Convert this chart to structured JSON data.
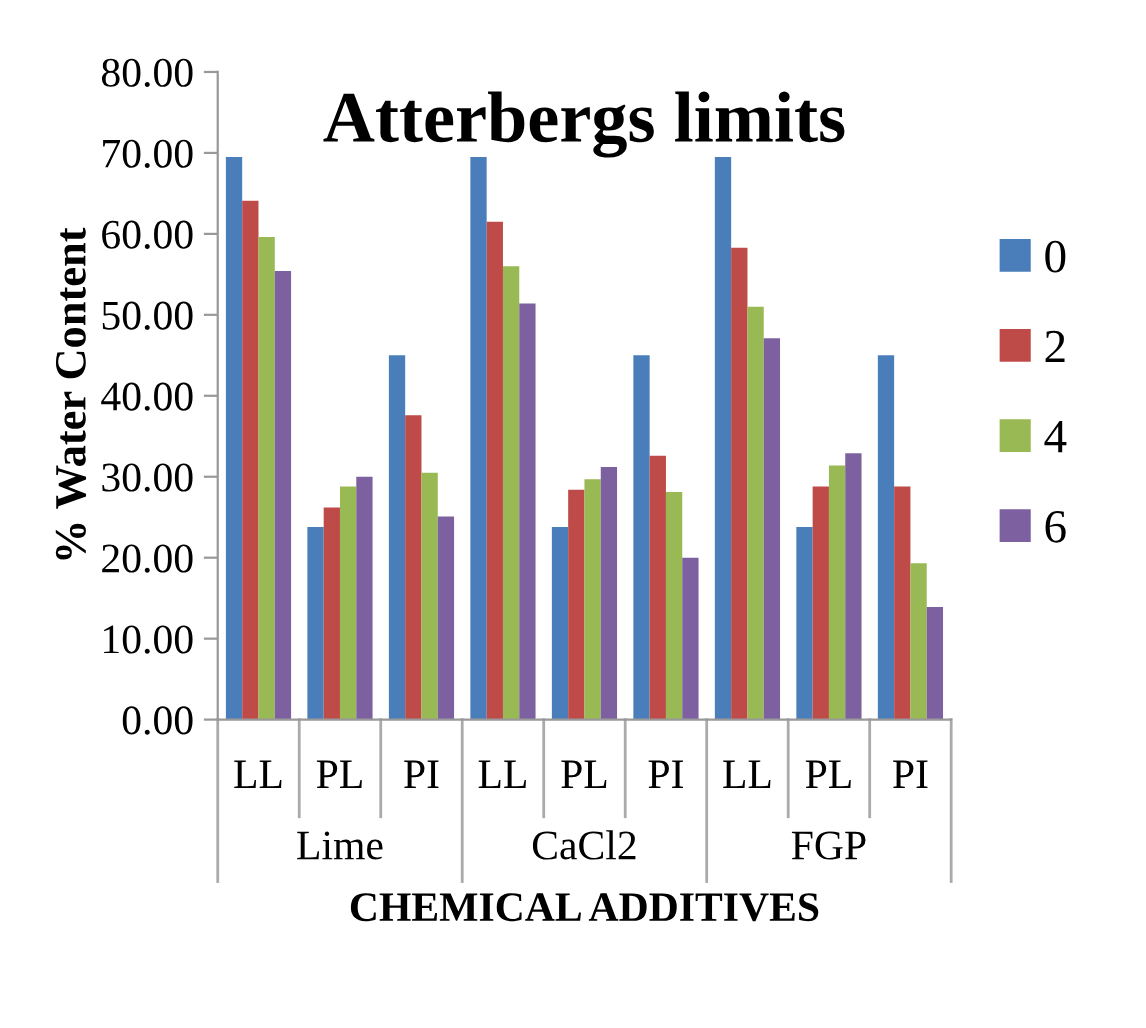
{
  "chart_data": {
    "type": "bar",
    "title": "Atterbergs limits",
    "ylabel": "% Water Content",
    "xlabel": "CHEMICAL ADDITIVES",
    "categories": [
      "LL",
      "PL",
      "PI",
      "LL",
      "PL",
      "PI",
      "LL",
      "PL",
      "PI"
    ],
    "annotations": [
      "Lime",
      "CaCl2",
      "FGP"
    ],
    "series": [
      {
        "name": "0",
        "color": "#4a7ebb",
        "values": [
          69.5,
          23.8,
          45.0,
          69.5,
          23.8,
          45.0,
          69.5,
          23.8,
          45.0
        ]
      },
      {
        "name": "2",
        "color": "#be4b48",
        "values": [
          64.1,
          26.2,
          37.6,
          61.5,
          28.4,
          32.6,
          58.3,
          28.8,
          28.8
        ]
      },
      {
        "name": "4",
        "color": "#98b954",
        "values": [
          59.6,
          28.8,
          30.5,
          56.0,
          29.7,
          28.1,
          51.0,
          31.4,
          19.3
        ]
      },
      {
        "name": "6",
        "color": "#7d60a0",
        "values": [
          55.4,
          30.0,
          25.1,
          51.4,
          31.2,
          20.0,
          47.1,
          32.9,
          13.9
        ]
      }
    ],
    "ylim": [
      0,
      80
    ],
    "yticks": [
      {
        "value": 0,
        "label": "0.00"
      },
      {
        "value": 10,
        "label": "10.00"
      },
      {
        "value": 20,
        "label": "20.00"
      },
      {
        "value": 30,
        "label": "30.00"
      },
      {
        "value": 40,
        "label": "40.00"
      },
      {
        "value": 50,
        "label": "50.00"
      },
      {
        "value": 60,
        "label": "60.00"
      },
      {
        "value": 70,
        "label": "70.00"
      },
      {
        "value": 80,
        "label": "80.00"
      }
    ],
    "grid": false,
    "legend": "right"
  }
}
